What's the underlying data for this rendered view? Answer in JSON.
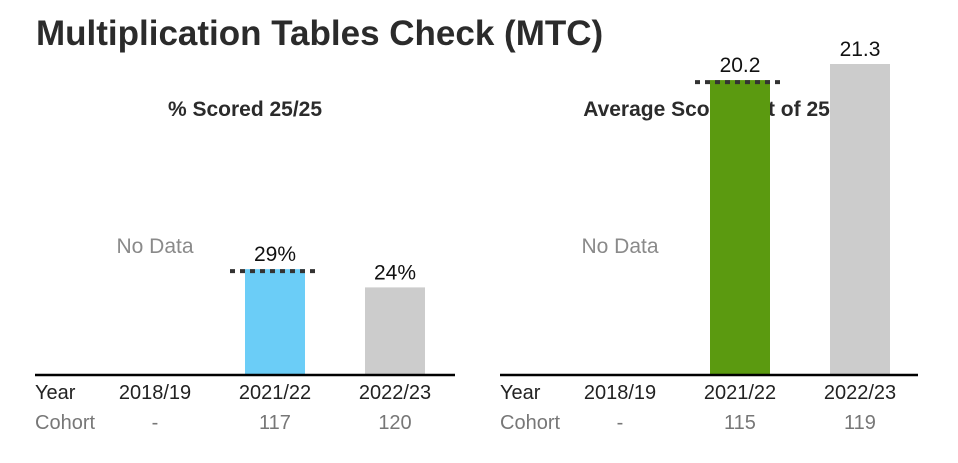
{
  "page_title": "Multiplication Tables Check (MTC)",
  "labels": {
    "year": "Year",
    "cohort": "Cohort"
  },
  "colors": {
    "baseline": "#000000",
    "muted_text": "#777777",
    "no_data_text": "#8a8a8a",
    "benchmark_line": "#333333"
  },
  "chart_data": [
    {
      "type": "bar",
      "title": "% Scored 25/25",
      "categories": [
        "2018/19",
        "2021/22",
        "2022/23"
      ],
      "values": [
        null,
        29,
        24
      ],
      "value_labels": [
        "No Data",
        "29%",
        "24%"
      ],
      "bar_colors": [
        "#cccccc",
        "#6bcdf7",
        "#cccccc"
      ],
      "benchmark": {
        "category": "2021/22",
        "value": 29,
        "style": "dotted"
      },
      "cohort": [
        "-",
        "117",
        "120"
      ],
      "ylim": [
        0,
        100
      ]
    },
    {
      "type": "bar",
      "title": "Average Score (out of 25)",
      "categories": [
        "2018/19",
        "2021/22",
        "2022/23"
      ],
      "values": [
        null,
        20.2,
        21.3
      ],
      "value_labels": [
        "No Data",
        "20.2",
        "21.3"
      ],
      "bar_colors": [
        "#cccccc",
        "#5b9a10",
        "#cccccc"
      ],
      "benchmark": {
        "category": "2021/22",
        "value": 20.2,
        "style": "dotted"
      },
      "cohort": [
        "-",
        "115",
        "119"
      ],
      "ylim": [
        0,
        25
      ]
    }
  ]
}
